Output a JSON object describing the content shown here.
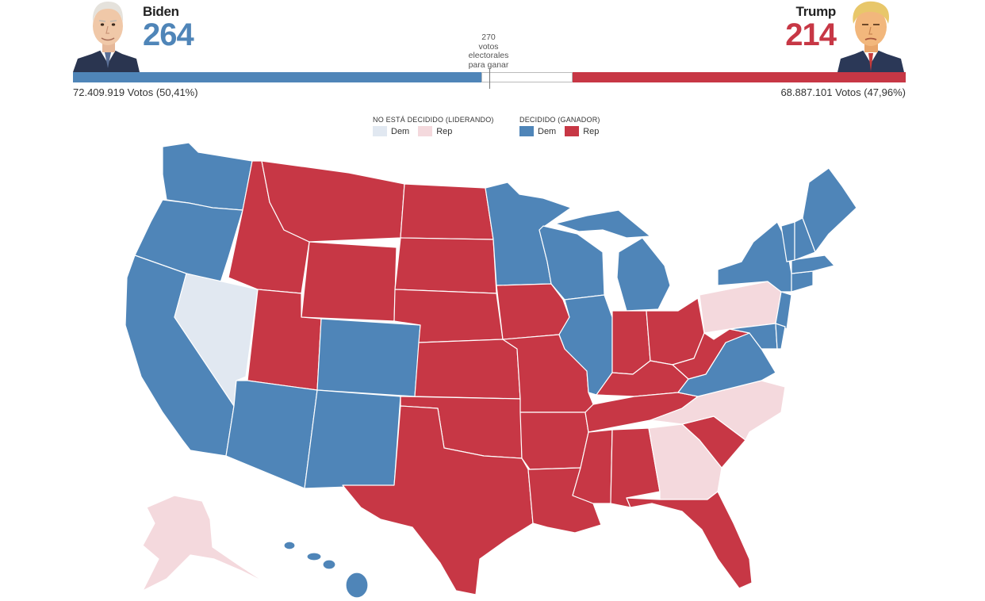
{
  "colors": {
    "dem_decided": "#4f85b8",
    "rep_decided": "#c73745",
    "dem_leading": "#e1e8f1",
    "rep_leading": "#f4d9dd"
  },
  "header": {
    "biden": {
      "name": "Biden",
      "electoral_votes": "264",
      "popular_vote": "72.409.919 Votos (50,41%)",
      "portrait": "biden-portrait"
    },
    "trump": {
      "name": "Trump",
      "electoral_votes": "214",
      "popular_vote": "68.887.101 Votos (47,96%)",
      "portrait": "trump-portrait"
    },
    "threshold_lines": [
      "270",
      "votos",
      "electorales",
      "para ganar"
    ],
    "bar": {
      "dem_share": 0.49,
      "undecided_share": 0.11,
      "rep_share": 0.4
    }
  },
  "legend": {
    "undecided": {
      "title": "NO ESTÁ DECIDIDO (LIDERANDO)",
      "dem": "Dem",
      "rep": "Rep"
    },
    "decided": {
      "title": "DECIDIDO (GANADOR)",
      "dem": "Dem",
      "rep": "Rep"
    }
  },
  "map": {
    "states": [
      {
        "id": "WA",
        "status": "dem_decided"
      },
      {
        "id": "OR",
        "status": "dem_decided"
      },
      {
        "id": "CA",
        "status": "dem_decided"
      },
      {
        "id": "NV",
        "status": "dem_leading"
      },
      {
        "id": "ID",
        "status": "rep_decided"
      },
      {
        "id": "MT",
        "status": "rep_decided"
      },
      {
        "id": "WY",
        "status": "rep_decided"
      },
      {
        "id": "UT",
        "status": "rep_decided"
      },
      {
        "id": "AZ",
        "status": "dem_decided"
      },
      {
        "id": "CO",
        "status": "dem_decided"
      },
      {
        "id": "NM",
        "status": "dem_decided"
      },
      {
        "id": "ND",
        "status": "rep_decided"
      },
      {
        "id": "SD",
        "status": "rep_decided"
      },
      {
        "id": "NE",
        "status": "rep_decided"
      },
      {
        "id": "KS",
        "status": "rep_decided"
      },
      {
        "id": "OK",
        "status": "rep_decided"
      },
      {
        "id": "TX",
        "status": "rep_decided"
      },
      {
        "id": "MN",
        "status": "dem_decided"
      },
      {
        "id": "IA",
        "status": "rep_decided"
      },
      {
        "id": "MO",
        "status": "rep_decided"
      },
      {
        "id": "AR",
        "status": "rep_decided"
      },
      {
        "id": "LA",
        "status": "rep_decided"
      },
      {
        "id": "WI",
        "status": "dem_decided"
      },
      {
        "id": "IL",
        "status": "dem_decided"
      },
      {
        "id": "MI",
        "status": "dem_decided"
      },
      {
        "id": "IN",
        "status": "rep_decided"
      },
      {
        "id": "OH",
        "status": "rep_decided"
      },
      {
        "id": "KY",
        "status": "rep_decided"
      },
      {
        "id": "TN",
        "status": "rep_decided"
      },
      {
        "id": "MS",
        "status": "rep_decided"
      },
      {
        "id": "AL",
        "status": "rep_decided"
      },
      {
        "id": "GA",
        "status": "rep_leading"
      },
      {
        "id": "FL",
        "status": "rep_decided"
      },
      {
        "id": "SC",
        "status": "rep_decided"
      },
      {
        "id": "NC",
        "status": "rep_leading"
      },
      {
        "id": "VA",
        "status": "dem_decided"
      },
      {
        "id": "WV",
        "status": "rep_decided"
      },
      {
        "id": "PA",
        "status": "rep_leading"
      },
      {
        "id": "NY",
        "status": "dem_decided"
      },
      {
        "id": "NJ",
        "status": "dem_decided"
      },
      {
        "id": "MD",
        "status": "dem_decided"
      },
      {
        "id": "DE",
        "status": "dem_decided"
      },
      {
        "id": "CT",
        "status": "dem_decided"
      },
      {
        "id": "MA",
        "status": "dem_decided"
      },
      {
        "id": "VT",
        "status": "dem_decided"
      },
      {
        "id": "NH",
        "status": "dem_decided"
      },
      {
        "id": "ME",
        "status": "dem_decided"
      },
      {
        "id": "AK",
        "status": "rep_leading"
      },
      {
        "id": "HI",
        "status": "dem_decided"
      }
    ]
  }
}
